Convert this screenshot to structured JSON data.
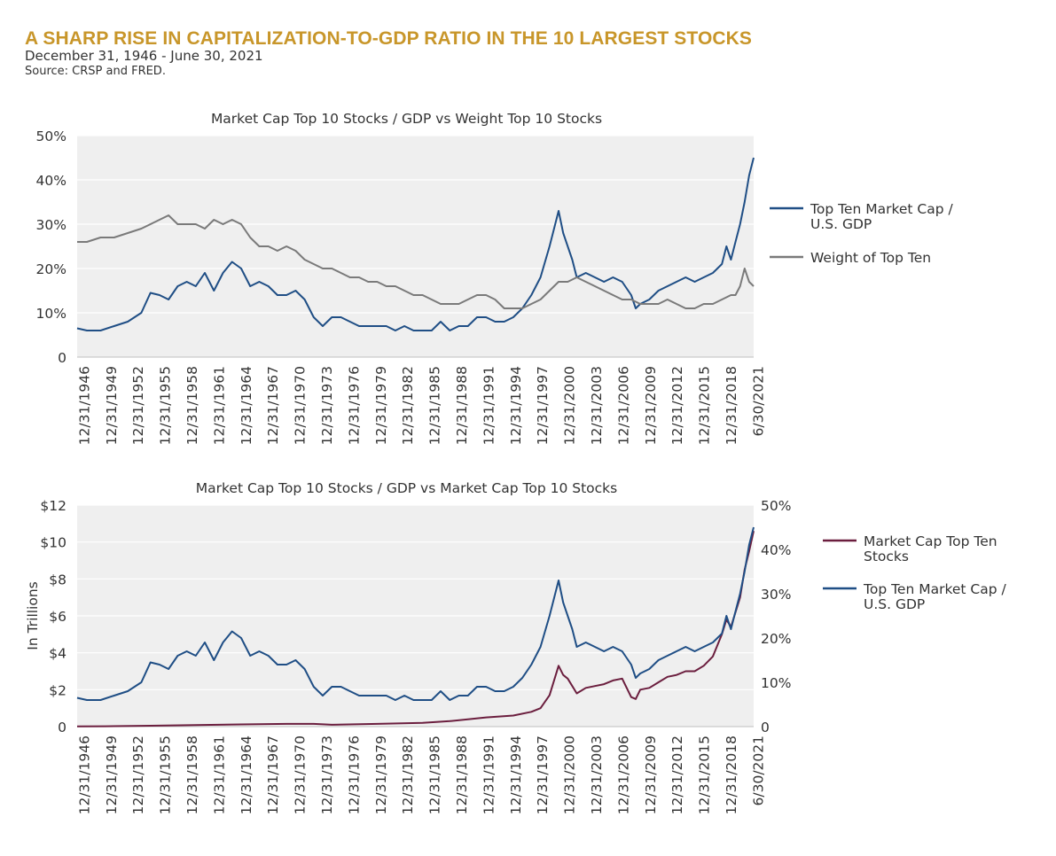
{
  "header": {
    "title": "A SHARP RISE IN CAPITALIZATION-TO-GDP RATIO IN THE 10 LARGEST STOCKS",
    "subtitle": "December 31, 1946 - June 30, 2021",
    "source": "Source: CRSP and FRED."
  },
  "colors": {
    "title": "#C8962A",
    "blue": "#1F4E85",
    "gray": "#7A7A7A",
    "maroon": "#6B1E3E",
    "plot_bg": "#EFEFEF",
    "gridline": "#FFFFFF"
  },
  "chart_data": [
    {
      "type": "line",
      "title": "Market Cap Top 10 Stocks / GDP vs Weight Top 10 Stocks",
      "xlabel": "",
      "ylabel": "",
      "xlim": [
        1946.92,
        2021.5
      ],
      "ylim": [
        0,
        50
      ],
      "grid": true,
      "legend_position": "right",
      "x_tick_labels": [
        "12/31/1946",
        "12/31/1949",
        "12/31/1952",
        "12/31/1955",
        "12/31/1958",
        "12/31/1961",
        "12/31/1964",
        "12/31/1967",
        "12/31/1970",
        "12/31/1973",
        "12/31/1976",
        "12/31/1979",
        "12/31/1982",
        "12/31/1985",
        "12/31/1988",
        "12/31/1991",
        "12/31/1994",
        "12/31/1997",
        "12/31/2000",
        "12/31/2003",
        "12/31/2006",
        "12/31/2009",
        "12/31/2012",
        "12/31/2015",
        "12/31/2018",
        "6/30/2021"
      ],
      "y_tick_labels": [
        "0",
        "10%",
        "20%",
        "30%",
        "40%",
        "50%"
      ],
      "series": [
        {
          "name": "Top Ten Market Cap / U.S. GDP",
          "legend": [
            "Top Ten Market Cap /",
            "U.S. GDP"
          ],
          "color": "#1F4E85",
          "x": [
            1946.92,
            1948,
            1949.5,
            1951,
            1952.5,
            1954,
            1955,
            1956,
            1957,
            1958,
            1959,
            1960,
            1961,
            1962,
            1963,
            1964,
            1965,
            1966,
            1967,
            1968,
            1969,
            1970,
            1971,
            1972,
            1973,
            1974,
            1975,
            1976,
            1977,
            1978,
            1979,
            1980,
            1981,
            1982,
            1983,
            1984,
            1985,
            1986,
            1987,
            1988,
            1989,
            1990,
            1991,
            1992,
            1993,
            1994,
            1995,
            1996,
            1997,
            1998,
            1999,
            2000,
            2000.5,
            2001,
            2001.5,
            2002,
            2003,
            2004,
            2005,
            2006,
            2007,
            2008,
            2008.5,
            2009,
            2010,
            2011,
            2012,
            2013,
            2014,
            2015,
            2016,
            2017,
            2018,
            2018.5,
            2019,
            2019.5,
            2020,
            2020.5,
            2021,
            2021.5
          ],
          "y": [
            6.5,
            6,
            6,
            7,
            8,
            10,
            14.5,
            14,
            13,
            16,
            17,
            16,
            19,
            15,
            19,
            21.5,
            20,
            16,
            17,
            16,
            14,
            14,
            15,
            13,
            9,
            7,
            9,
            9,
            8,
            7,
            7,
            7,
            7,
            6,
            7,
            6,
            6,
            6,
            8,
            6,
            7,
            7,
            9,
            9,
            8,
            8,
            9,
            11,
            14,
            18,
            25,
            33,
            28,
            25,
            22,
            18,
            19,
            18,
            17,
            18,
            17,
            14,
            11,
            12,
            13,
            15,
            16,
            17,
            18,
            17,
            18,
            19,
            21,
            25,
            22,
            26,
            30,
            35,
            41,
            45
          ]
        },
        {
          "name": "Weight of Top Ten",
          "legend": [
            "Weight of Top Ten"
          ],
          "color": "#7A7A7A",
          "x": [
            1946.92,
            1948,
            1949.5,
            1951,
            1952.5,
            1954,
            1955,
            1956,
            1957,
            1958,
            1959,
            1960,
            1961,
            1962,
            1963,
            1964,
            1965,
            1966,
            1967,
            1968,
            1969,
            1970,
            1971,
            1972,
            1973,
            1974,
            1975,
            1976,
            1977,
            1978,
            1979,
            1980,
            1981,
            1982,
            1983,
            1984,
            1985,
            1986,
            1987,
            1988,
            1989,
            1990,
            1991,
            1992,
            1993,
            1994,
            1995,
            1996,
            1997,
            1998,
            1999,
            2000,
            2001,
            2002,
            2003,
            2004,
            2005,
            2006,
            2007,
            2008,
            2009,
            2010,
            2011,
            2012,
            2013,
            2014,
            2015,
            2016,
            2017,
            2018,
            2019,
            2019.5,
            2020,
            2020.5,
            2021,
            2021.5
          ],
          "y": [
            26,
            26,
            27,
            27,
            28,
            29,
            30,
            31,
            32,
            30,
            30,
            30,
            29,
            31,
            30,
            31,
            30,
            27,
            25,
            25,
            24,
            25,
            24,
            22,
            21,
            20,
            20,
            19,
            18,
            18,
            17,
            17,
            16,
            16,
            15,
            14,
            14,
            13,
            12,
            12,
            12,
            13,
            14,
            14,
            13,
            11,
            11,
            11,
            12,
            13,
            15,
            17,
            17,
            18,
            17,
            16,
            15,
            14,
            13,
            13,
            12,
            12,
            12,
            13,
            12,
            11,
            11,
            12,
            12,
            13,
            14,
            14,
            16,
            20,
            17,
            16
          ]
        }
      ]
    },
    {
      "type": "line",
      "title": "Market Cap Top 10 Stocks / GDP vs Market Cap Top 10 Stocks",
      "xlabel": "",
      "ylabel": "In Trillions",
      "xlim": [
        1946.92,
        2021.5
      ],
      "ylim": [
        0,
        12
      ],
      "y2lim": [
        0,
        50
      ],
      "grid": true,
      "legend_position": "right",
      "x_tick_labels": [
        "12/31/1946",
        "12/31/1949",
        "12/31/1952",
        "12/31/1955",
        "12/31/1958",
        "12/31/1961",
        "12/31/1964",
        "12/31/1967",
        "12/31/1970",
        "12/31/1973",
        "12/31/1976",
        "12/31/1979",
        "12/31/1982",
        "12/31/1985",
        "12/31/1988",
        "12/31/1991",
        "12/31/1994",
        "12/31/1997",
        "12/31/2000",
        "12/31/2003",
        "12/31/2006",
        "12/31/2009",
        "12/31/2012",
        "12/31/2015",
        "12/31/2018",
        "6/30/2021"
      ],
      "y_tick_labels": [
        "0",
        "$2",
        "$4",
        "$6",
        "$8",
        "$10",
        "$12"
      ],
      "y2_tick_labels": [
        "0",
        "10%",
        "20%",
        "30%",
        "40%",
        "50%"
      ],
      "series": [
        {
          "name": "Market Cap Top Ten Stocks",
          "legend": [
            "Market Cap Top Ten",
            "Stocks"
          ],
          "axis": "left",
          "unit": "$ trillions",
          "color": "#6B1E3E",
          "x": [
            1946.92,
            1950,
            1955,
            1960,
            1965,
            1970,
            1973,
            1975,
            1980,
            1985,
            1988,
            1990,
            1992,
            1995,
            1997,
            1998,
            1999,
            2000,
            2000.5,
            2001,
            2002,
            2003,
            2004,
            2005,
            2006,
            2007,
            2008,
            2008.5,
            2009,
            2010,
            2011,
            2012,
            2013,
            2014,
            2015,
            2016,
            2017,
            2018,
            2018.5,
            2019,
            2020,
            2020.5,
            2021,
            2021.5
          ],
          "y": [
            0.01,
            0.02,
            0.05,
            0.08,
            0.12,
            0.15,
            0.15,
            0.1,
            0.15,
            0.2,
            0.3,
            0.4,
            0.5,
            0.6,
            0.8,
            1.0,
            1.7,
            3.3,
            2.8,
            2.6,
            1.8,
            2.1,
            2.2,
            2.3,
            2.5,
            2.6,
            1.6,
            1.5,
            2.0,
            2.1,
            2.4,
            2.7,
            2.8,
            3.0,
            3.0,
            3.3,
            3.8,
            5.0,
            5.8,
            5.4,
            7.0,
            8.5,
            9.5,
            10.6
          ]
        },
        {
          "name": "Top Ten Market Cap / U.S. GDP",
          "legend": [
            "Top Ten Market Cap /",
            "U.S. GDP"
          ],
          "axis": "right",
          "unit": "% of GDP",
          "color": "#1F4E85",
          "x": [
            1946.92,
            1948,
            1949.5,
            1951,
            1952.5,
            1954,
            1955,
            1956,
            1957,
            1958,
            1959,
            1960,
            1961,
            1962,
            1963,
            1964,
            1965,
            1966,
            1967,
            1968,
            1969,
            1970,
            1971,
            1972,
            1973,
            1974,
            1975,
            1976,
            1977,
            1978,
            1979,
            1980,
            1981,
            1982,
            1983,
            1984,
            1985,
            1986,
            1987,
            1988,
            1989,
            1990,
            1991,
            1992,
            1993,
            1994,
            1995,
            1996,
            1997,
            1998,
            1999,
            2000,
            2000.5,
            2001,
            2001.5,
            2002,
            2003,
            2004,
            2005,
            2006,
            2007,
            2008,
            2008.5,
            2009,
            2010,
            2011,
            2012,
            2013,
            2014,
            2015,
            2016,
            2017,
            2018,
            2018.5,
            2019,
            2019.5,
            2020,
            2020.5,
            2021,
            2021.5
          ],
          "y": [
            6.5,
            6,
            6,
            7,
            8,
            10,
            14.5,
            14,
            13,
            16,
            17,
            16,
            19,
            15,
            19,
            21.5,
            20,
            16,
            17,
            16,
            14,
            14,
            15,
            13,
            9,
            7,
            9,
            9,
            8,
            7,
            7,
            7,
            7,
            6,
            7,
            6,
            6,
            6,
            8,
            6,
            7,
            7,
            9,
            9,
            8,
            8,
            9,
            11,
            14,
            18,
            25,
            33,
            28,
            25,
            22,
            18,
            19,
            18,
            17,
            18,
            17,
            14,
            11,
            12,
            13,
            15,
            16,
            17,
            18,
            17,
            18,
            19,
            21,
            25,
            22,
            26,
            30,
            35,
            41,
            45
          ]
        }
      ]
    }
  ]
}
